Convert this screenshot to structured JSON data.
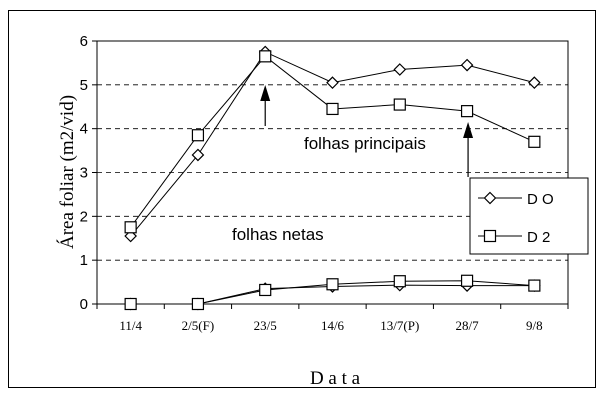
{
  "chart_data": {
    "type": "line",
    "title": "",
    "xlabel": "D a t a",
    "ylabel": "Área foliar (m2/vid)",
    "categories": [
      "11/4",
      "2/5(F)",
      "23/5",
      "14/6",
      "13/7(P)",
      "28/7",
      "9/8"
    ],
    "yticks": [
      "0",
      "1",
      "2",
      "3",
      "4",
      "5",
      "6"
    ],
    "ylim": [
      0,
      6
    ],
    "grid": "horizontal dashed",
    "legend_position": "right",
    "series": [
      {
        "name": "D O",
        "group": "folhas principais",
        "marker": "diamond",
        "values": [
          1.55,
          3.4,
          5.75,
          5.05,
          5.35,
          5.45,
          5.05
        ]
      },
      {
        "name": "D 2",
        "group": "folhas principais",
        "marker": "square",
        "values": [
          1.75,
          3.85,
          5.65,
          4.45,
          4.55,
          4.4,
          3.7
        ]
      },
      {
        "name": "D O",
        "group": "folhas netas",
        "marker": "diamond",
        "values": [
          0,
          0,
          0.35,
          0.4,
          0.43,
          0.42,
          0.42
        ]
      },
      {
        "name": "D 2",
        "group": "folhas netas",
        "marker": "square",
        "values": [
          0,
          0,
          0.32,
          0.45,
          0.52,
          0.53,
          0.42
        ]
      }
    ],
    "annotations": [
      "folhas principais",
      "folhas netas"
    ],
    "arrows_at": [
      "23/5",
      "28/7"
    ]
  }
}
